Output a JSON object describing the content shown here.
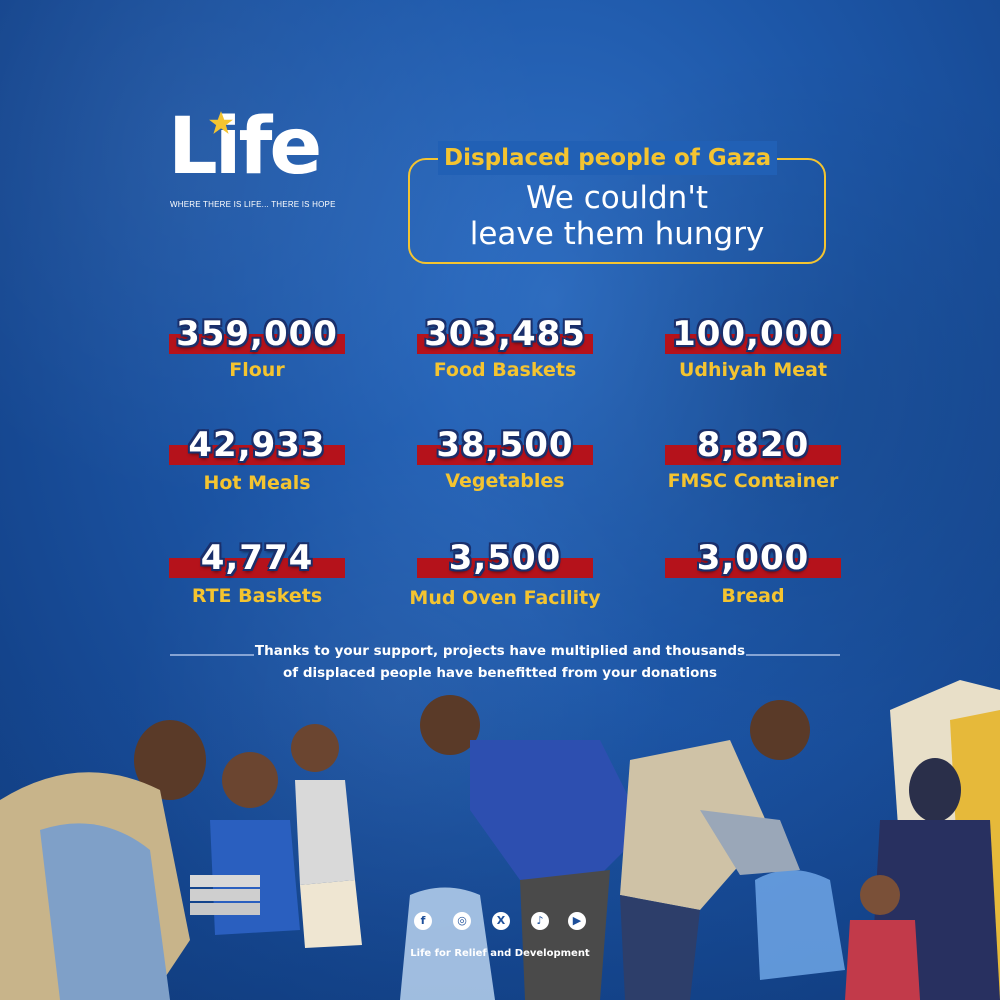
{
  "logo": {
    "word": "Life",
    "tagline": "WHERE THERE IS LIFE... THERE IS HOPE"
  },
  "headline": {
    "kicker": "Displaced people of Gaza",
    "line1": "We couldn't",
    "line2": "leave them hungry"
  },
  "stats": [
    {
      "value": "359,000",
      "label": "Flour"
    },
    {
      "value": "303,485",
      "label": "Food Baskets"
    },
    {
      "value": "100,000",
      "label": "Udhiyah Meat"
    },
    {
      "value": "42,933",
      "label": "Hot Meals"
    },
    {
      "value": "38,500",
      "label": "Vegetables"
    },
    {
      "value": "8,820",
      "label": "FMSC Container"
    },
    {
      "value": "4,774",
      "label": "RTE Baskets"
    },
    {
      "value": "3,500",
      "label": "Mud Oven Facility"
    },
    {
      "value": "3,000",
      "label": "Bread"
    }
  ],
  "thanks": {
    "line1": "Thanks to your support, projects have multiplied and thousands",
    "line2": "of displaced people have benefitted from your donations"
  },
  "social": {
    "icons": [
      "facebook-icon",
      "instagram-icon",
      "x-icon",
      "tiktok-icon",
      "youtube-icon"
    ],
    "glyphs": [
      "f",
      "◎",
      "X",
      "♪",
      "▶"
    ]
  },
  "footer": {
    "org": "Life for Relief and Development"
  },
  "colors": {
    "background": "#1d57a8",
    "accent_yellow": "#f4c430",
    "bar_red": "#b5121b",
    "text_white": "#ffffff"
  }
}
